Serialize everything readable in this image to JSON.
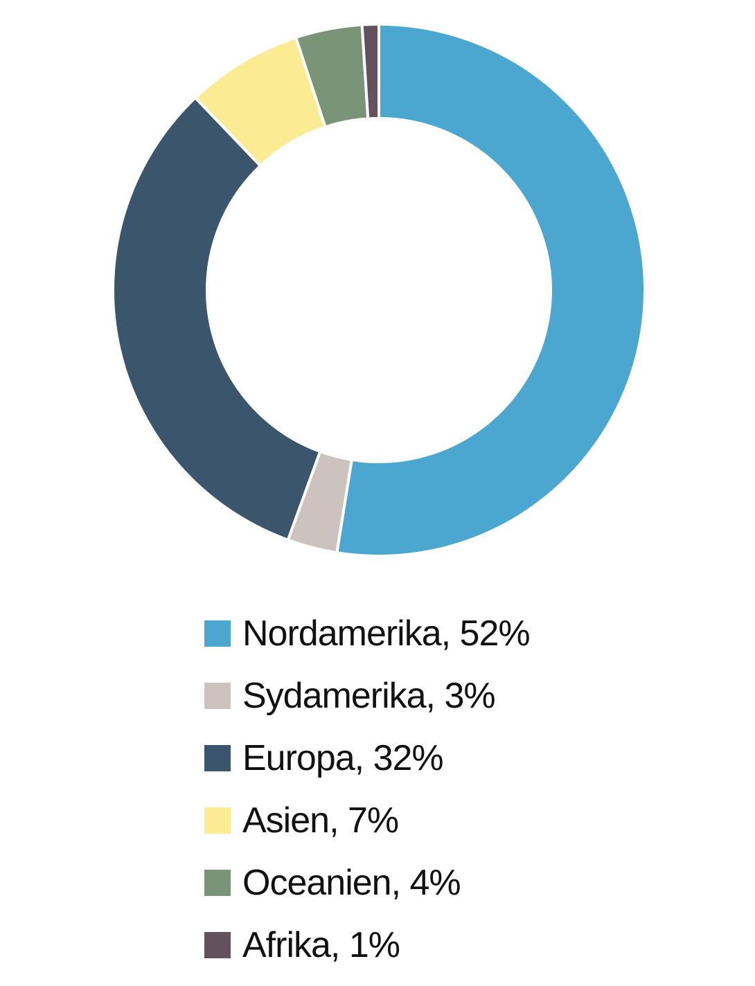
{
  "chart_data": {
    "type": "pie",
    "title": "",
    "categories": [
      "Nordamerika",
      "Sydamerika",
      "Europa",
      "Asien",
      "Oceanien",
      "Afrika"
    ],
    "values": [
      52,
      3,
      32,
      7,
      4,
      1
    ],
    "unit": "%",
    "colors": [
      "#4ba7cf",
      "#cdc3be",
      "#3a556c",
      "#fbec94",
      "#7a9478",
      "#63525d"
    ],
    "legend_labels": [
      "Nordamerika, 52%",
      "Sydamerika, 3%",
      "Europa, 32%",
      "Asien, 7%",
      "Oceanien, 4%",
      "Afrika, 1%"
    ],
    "legend_position": "bottom",
    "donut": true,
    "start": "top",
    "direction": "clockwise"
  }
}
